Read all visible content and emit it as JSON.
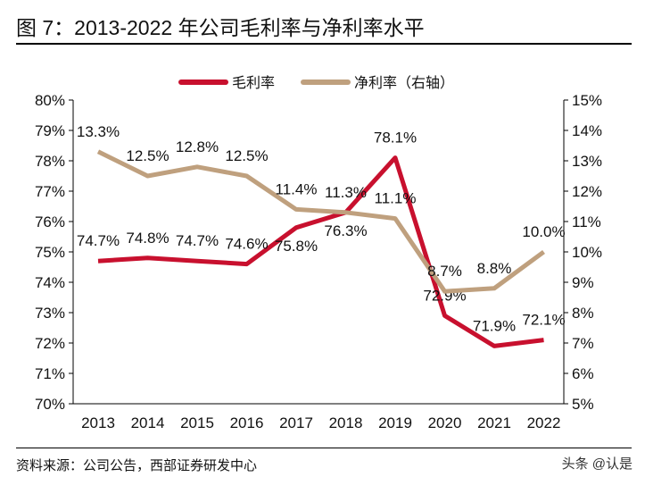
{
  "title": "图 7：2013-2022 年公司毛利率与净利率水平",
  "source": "资料来源：公司公告，西部证券研发中心",
  "watermark": "头条 @认是",
  "chart_data": {
    "type": "line",
    "categories": [
      "2013",
      "2014",
      "2015",
      "2016",
      "2017",
      "2018",
      "2019",
      "2020",
      "2021",
      "2022"
    ],
    "series": [
      {
        "name": "毛利率",
        "axis": "left",
        "color": "#C8102E",
        "values": [
          74.7,
          74.8,
          74.7,
          74.6,
          75.8,
          76.3,
          78.1,
          72.9,
          71.9,
          72.1
        ],
        "labels": [
          "74.7%",
          "74.8%",
          "74.7%",
          "74.6%",
          "75.8%",
          "76.3%",
          "78.1%",
          "72.9%",
          "71.9%",
          "72.1%"
        ]
      },
      {
        "name": "净利率（右轴）",
        "axis": "right",
        "color": "#BFA07E",
        "values": [
          13.3,
          12.5,
          12.8,
          12.5,
          11.4,
          11.3,
          11.1,
          8.7,
          8.8,
          10.0
        ],
        "labels": [
          "13.3%",
          "12.5%",
          "12.8%",
          "12.5%",
          "11.4%",
          "11.3%",
          "11.1%",
          "8.7%",
          "8.8%",
          "10.0%"
        ]
      }
    ],
    "ylim_left": [
      70,
      80
    ],
    "ylim_right": [
      5,
      15
    ],
    "left_ticks": [
      "70%",
      "71%",
      "72%",
      "73%",
      "74%",
      "75%",
      "76%",
      "77%",
      "78%",
      "79%",
      "80%"
    ],
    "right_ticks": [
      "5%",
      "6%",
      "7%",
      "8%",
      "9%",
      "10%",
      "11%",
      "12%",
      "13%",
      "14%",
      "15%"
    ],
    "legend": "top",
    "grid": false
  }
}
